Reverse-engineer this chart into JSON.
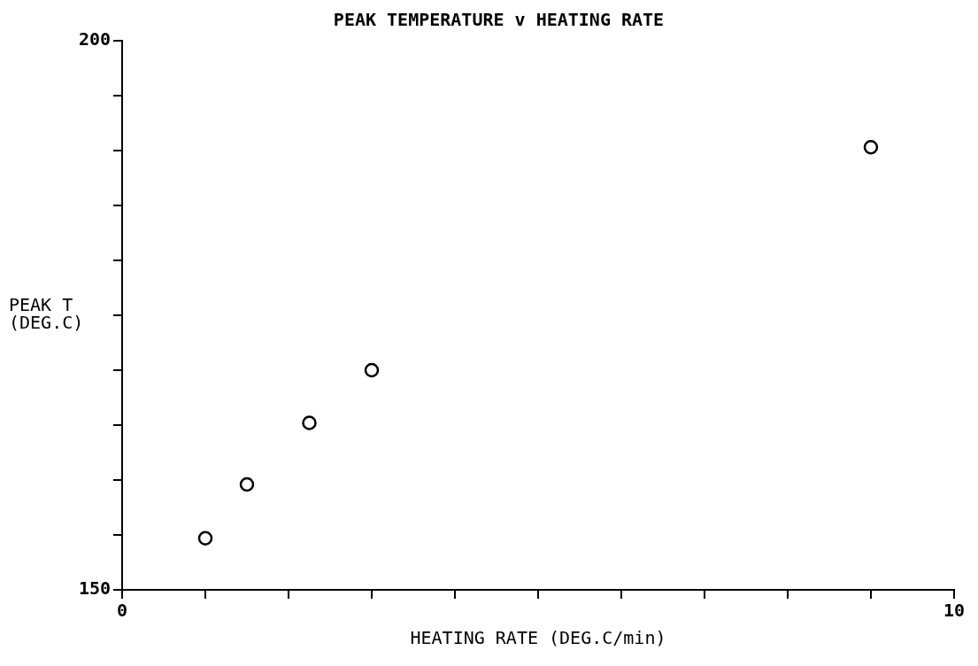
{
  "chart_data": {
    "type": "scatter",
    "title": "PEAK TEMPERATURE v HEATING RATE",
    "xlabel": "HEATING RATE (DEG.C/min)",
    "ylabel": "PEAK T (DEG.C)",
    "x": [
      1.0,
      1.5,
      2.25,
      3.0,
      9.0
    ],
    "values": [
      154.7,
      159.6,
      165.2,
      170.0,
      190.3
    ],
    "color": "#000000",
    "marker": "circle",
    "grid": false,
    "legend": false,
    "xlim": [
      0,
      10
    ],
    "xticks": [
      0,
      {
        "value": 1,
        "label": null
      },
      {
        "value": 2,
        "label": null
      },
      {
        "value": 3,
        "label": null
      },
      {
        "value": 4,
        "label": null
      },
      {
        "value": 5,
        "label": null
      },
      {
        "value": 6,
        "label": null
      },
      {
        "value": 7,
        "label": null
      },
      {
        "value": 8,
        "label": null
      },
      {
        "value": 9,
        "label": null
      },
      10
    ],
    "ylim": [
      150,
      200
    ],
    "yticks": [
      150,
      {
        "value": 155,
        "label": null
      },
      {
        "value": 160,
        "label": null
      },
      {
        "value": 165,
        "label": null
      },
      {
        "value": 170,
        "label": null
      },
      {
        "value": 175,
        "label": null
      },
      {
        "value": 180,
        "label": null
      },
      {
        "value": 185,
        "label": null
      },
      {
        "value": 190,
        "label": null
      },
      {
        "value": 195,
        "label": null
      },
      200
    ]
  }
}
